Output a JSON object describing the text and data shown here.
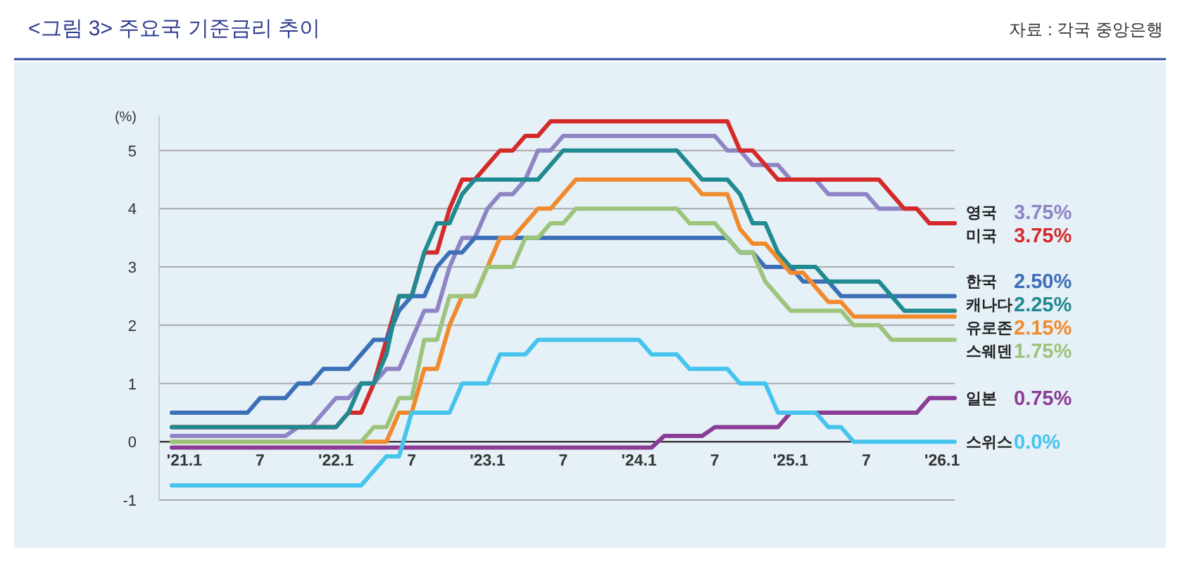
{
  "chart_data": {
    "type": "line",
    "title": "<그림 3> 주요국 기준금리 추이",
    "annotations": [
      "자료 : 각국 중앙은행",
      "3.75%",
      "3.75%",
      "2.50%",
      "2.25%",
      "2.15%",
      "1.75%",
      "0.75%",
      "0.0%"
    ],
    "ylabel": "(%)",
    "xlim": [
      "2020-11",
      "2026-02"
    ],
    "ylim": [
      -1,
      5.6
    ],
    "xticks": [
      {
        "value": "2021-01",
        "label": "'21.1"
      },
      {
        "value": "2021-07",
        "label": "7"
      },
      {
        "value": "2022-01",
        "label": "'22.1"
      },
      {
        "value": "2022-07",
        "label": "7"
      },
      {
        "value": "2023-01",
        "label": "'23.1"
      },
      {
        "value": "2023-07",
        "label": "7"
      },
      {
        "value": "2024-01",
        "label": "'24.1"
      },
      {
        "value": "2024-07",
        "label": "7"
      },
      {
        "value": "2025-01",
        "label": "'25.1"
      },
      {
        "value": "2025-07",
        "label": "7"
      },
      {
        "value": "2026-01",
        "label": "'26.1"
      }
    ],
    "yticks": [
      -1,
      0,
      1,
      2,
      3,
      4,
      5
    ],
    "grid": "y",
    "legend": "right",
    "series": [
      {
        "name": "영국",
        "color": "#8f84c4",
        "x": [
          "2020-12",
          "2021-09",
          "2021-10",
          "2021-11",
          "2021-12",
          "2022-01",
          "2022-02",
          "2022-03",
          "2022-04",
          "2022-05",
          "2022-06",
          "2022-07",
          "2022-08",
          "2022-09",
          "2022-10",
          "2022-11",
          "2022-12",
          "2023-01",
          "2023-02",
          "2023-03",
          "2023-04",
          "2023-05",
          "2023-06",
          "2023-07",
          "2024-07",
          "2024-08",
          "2024-09",
          "2024-10",
          "2024-12",
          "2025-01",
          "2025-03",
          "2025-04",
          "2025-07",
          "2025-08",
          "2025-11",
          "2025-12",
          "2026-02"
        ],
        "values": [
          0.1,
          0.1,
          0.25,
          0.25,
          0.5,
          0.75,
          0.75,
          1.0,
          1.0,
          1.25,
          1.25,
          1.75,
          2.25,
          2.25,
          3.0,
          3.5,
          3.5,
          4.0,
          4.25,
          4.25,
          4.5,
          5.0,
          5.0,
          5.25,
          5.25,
          5.0,
          5.0,
          4.75,
          4.75,
          4.5,
          4.5,
          4.25,
          4.25,
          4.0,
          4.0,
          3.75,
          3.75
        ]
      },
      {
        "name": "미국",
        "color": "#d42a2a",
        "x": [
          "2020-12",
          "2022-01",
          "2022-02",
          "2022-03",
          "2022-04",
          "2022-05",
          "2022-06",
          "2022-07",
          "2022-08",
          "2022-09",
          "2022-10",
          "2022-11",
          "2022-12",
          "2023-01",
          "2023-02",
          "2023-03",
          "2023-04",
          "2023-05",
          "2023-06",
          "2024-08",
          "2024-09",
          "2024-10",
          "2024-11",
          "2024-12",
          "2025-08",
          "2025-09",
          "2025-10",
          "2025-11",
          "2025-12",
          "2026-02"
        ],
        "values": [
          0.25,
          0.25,
          0.5,
          0.5,
          1.0,
          1.75,
          2.5,
          2.5,
          3.25,
          3.25,
          4.0,
          4.5,
          4.5,
          4.75,
          5.0,
          5.0,
          5.25,
          5.25,
          5.5,
          5.5,
          5.0,
          5.0,
          4.75,
          4.5,
          4.5,
          4.25,
          4.0,
          4.0,
          3.75,
          3.75
        ]
      },
      {
        "name": "한국",
        "color": "#3b6fb6",
        "x": [
          "2020-12",
          "2021-06",
          "2021-07",
          "2021-09",
          "2021-10",
          "2021-11",
          "2021-12",
          "2022-02",
          "2022-03",
          "2022-04",
          "2022-05",
          "2022-06",
          "2022-07",
          "2022-08",
          "2022-09",
          "2022-10",
          "2022-11",
          "2022-12",
          "2024-08",
          "2024-09",
          "2024-10",
          "2024-11",
          "2025-01",
          "2025-02",
          "2025-04",
          "2025-05",
          "2026-02"
        ],
        "values": [
          0.5,
          0.5,
          0.75,
          0.75,
          1.0,
          1.0,
          1.25,
          1.25,
          1.5,
          1.75,
          1.75,
          2.25,
          2.5,
          2.5,
          3.0,
          3.25,
          3.25,
          3.5,
          3.5,
          3.25,
          3.25,
          3.0,
          3.0,
          2.75,
          2.75,
          2.5,
          2.5
        ]
      },
      {
        "name": "캐나다",
        "color": "#1f8a8f",
        "x": [
          "2020-12",
          "2022-01",
          "2022-02",
          "2022-03",
          "2022-04",
          "2022-05",
          "2022-06",
          "2022-07",
          "2022-08",
          "2022-09",
          "2022-10",
          "2022-11",
          "2022-12",
          "2023-05",
          "2023-06",
          "2023-07",
          "2024-04",
          "2024-05",
          "2024-06",
          "2024-08",
          "2024-09",
          "2024-10",
          "2024-11",
          "2024-12",
          "2025-01",
          "2025-03",
          "2025-04",
          "2025-08",
          "2025-09",
          "2025-10",
          "2026-02"
        ],
        "values": [
          0.25,
          0.25,
          0.5,
          1.0,
          1.0,
          1.5,
          2.5,
          2.5,
          3.25,
          3.75,
          3.75,
          4.25,
          4.5,
          4.5,
          4.75,
          5.0,
          5.0,
          4.75,
          4.5,
          4.5,
          4.25,
          3.75,
          3.75,
          3.25,
          3.0,
          3.0,
          2.75,
          2.75,
          2.5,
          2.25,
          2.25
        ]
      },
      {
        "name": "유로존",
        "color": "#f08a2c",
        "x": [
          "2020-12",
          "2022-05",
          "2022-06",
          "2022-07",
          "2022-08",
          "2022-09",
          "2022-10",
          "2022-11",
          "2022-12",
          "2023-01",
          "2023-02",
          "2023-03",
          "2023-04",
          "2023-05",
          "2023-06",
          "2023-07",
          "2023-08",
          "2024-05",
          "2024-06",
          "2024-08",
          "2024-09",
          "2024-10",
          "2024-11",
          "2024-12",
          "2025-01",
          "2025-02",
          "2025-03",
          "2025-04",
          "2025-05",
          "2025-06",
          "2026-02"
        ],
        "values": [
          0,
          0,
          0.5,
          0.5,
          1.25,
          1.25,
          2.0,
          2.5,
          2.5,
          3.0,
          3.5,
          3.5,
          3.75,
          4.0,
          4.0,
          4.25,
          4.5,
          4.5,
          4.25,
          4.25,
          3.65,
          3.4,
          3.4,
          3.15,
          2.9,
          2.9,
          2.65,
          2.4,
          2.4,
          2.15,
          2.15
        ]
      },
      {
        "name": "스웨덴",
        "color": "#9cc47a",
        "x": [
          "2020-12",
          "2022-03",
          "2022-04",
          "2022-05",
          "2022-06",
          "2022-07",
          "2022-08",
          "2022-09",
          "2022-10",
          "2022-12",
          "2023-01",
          "2023-03",
          "2023-04",
          "2023-05",
          "2023-06",
          "2023-07",
          "2023-08",
          "2024-04",
          "2024-05",
          "2024-07",
          "2024-08",
          "2024-09",
          "2024-10",
          "2024-11",
          "2024-12",
          "2025-01",
          "2025-05",
          "2025-06",
          "2025-08",
          "2025-09",
          "2026-02"
        ],
        "values": [
          0,
          0,
          0.25,
          0.25,
          0.75,
          0.75,
          1.75,
          1.75,
          2.5,
          2.5,
          3.0,
          3.0,
          3.5,
          3.5,
          3.75,
          3.75,
          4.0,
          4.0,
          3.75,
          3.75,
          3.5,
          3.25,
          3.25,
          2.75,
          2.5,
          2.25,
          2.25,
          2.0,
          2.0,
          1.75,
          1.75
        ]
      },
      {
        "name": "일본",
        "color": "#8b3c96",
        "x": [
          "2020-12",
          "2024-02",
          "2024-03",
          "2024-06",
          "2024-07",
          "2024-12",
          "2025-01",
          "2025-11",
          "2025-12",
          "2026-02"
        ],
        "values": [
          -0.1,
          -0.1,
          0.1,
          0.1,
          0.25,
          0.25,
          0.5,
          0.5,
          0.75,
          0.75
        ]
      },
      {
        "name": "스위스",
        "color": "#45c4ee",
        "x": [
          "2020-12",
          "2022-03",
          "2022-05",
          "2022-06",
          "2022-07",
          "2022-10",
          "2022-11",
          "2023-01",
          "2023-02",
          "2023-04",
          "2023-05",
          "2024-01",
          "2024-02",
          "2024-04",
          "2024-05",
          "2024-08",
          "2024-09",
          "2024-11",
          "2024-12",
          "2025-03",
          "2025-04",
          "2025-05",
          "2025-06",
          "2026-02"
        ],
        "values": [
          -0.75,
          -0.75,
          -0.25,
          -0.25,
          0.5,
          0.5,
          1.0,
          1.0,
          1.5,
          1.5,
          1.75,
          1.75,
          1.5,
          1.5,
          1.25,
          1.25,
          1.0,
          1.0,
          0.5,
          0.5,
          0.25,
          0.25,
          0.0,
          0.0
        ]
      }
    ]
  }
}
